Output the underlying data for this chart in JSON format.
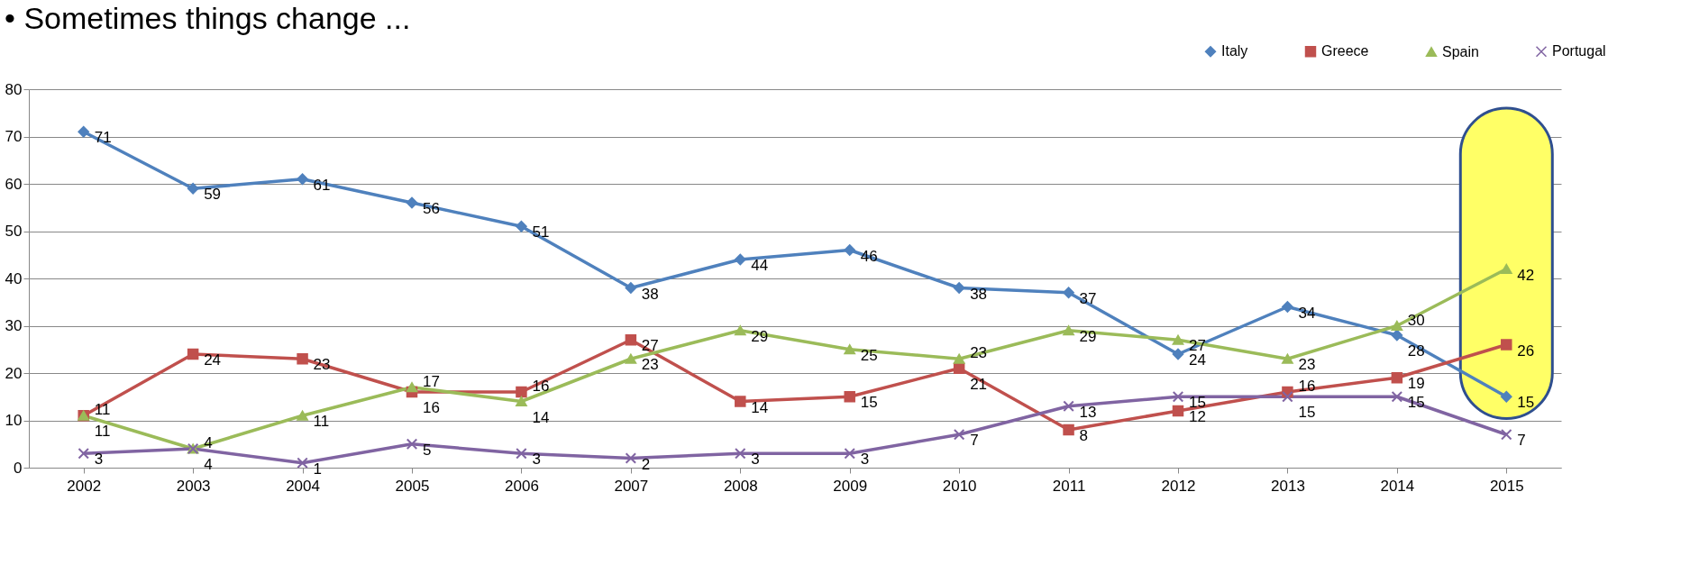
{
  "chart_data": {
    "type": "line",
    "title": "•   Sometimes things change ...",
    "categories": [
      "2002",
      "2003",
      "2004",
      "2005",
      "2006",
      "2007",
      "2008",
      "2009",
      "2010",
      "2011",
      "2012",
      "2013",
      "2014",
      "2015"
    ],
    "series": [
      {
        "name": "Italy",
        "color": "#4f81bd",
        "marker": "diamond",
        "values": [
          71,
          59,
          61,
          56,
          51,
          38,
          44,
          46,
          38,
          37,
          24,
          34,
          28,
          15
        ]
      },
      {
        "name": "Greece",
        "color": "#c0504d",
        "marker": "square",
        "values": [
          11,
          24,
          23,
          16,
          16,
          27,
          14,
          15,
          21,
          8,
          12,
          16,
          19,
          26
        ]
      },
      {
        "name": "Spain",
        "color": "#9bbb59",
        "marker": "triangle",
        "values": [
          11,
          4,
          11,
          17,
          14,
          23,
          29,
          25,
          23,
          29,
          27,
          23,
          30,
          42
        ]
      },
      {
        "name": "Portugal",
        "color": "#8064a2",
        "marker": "cross",
        "values": [
          3,
          4,
          1,
          5,
          3,
          2,
          3,
          3,
          7,
          13,
          15,
          15,
          15,
          7
        ]
      }
    ],
    "ylim": [
      0,
      80
    ],
    "yticks": [
      0,
      10,
      20,
      30,
      40,
      50,
      60,
      70,
      80
    ],
    "grid": "y",
    "legend": "top right",
    "data_labels": true,
    "line_style": "solid",
    "bands": [
      {
        "axis": "x",
        "from": "2015",
        "to": "2015",
        "color": "#ffff66"
      }
    ]
  }
}
